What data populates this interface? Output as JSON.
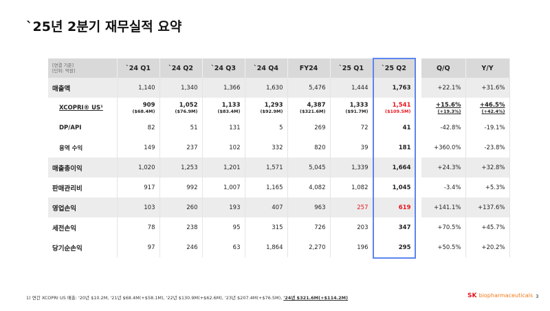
{
  "title": "`25년 2분기 재무실적 요약",
  "header": {
    "basis": "[연결 기준]",
    "unit": "[단위: 억원]",
    "cols": [
      "`24 Q1",
      "`24 Q2",
      "`24 Q3",
      "`24 Q4",
      "FY24",
      "`25 Q1",
      "`25 Q2"
    ],
    "qq": "Q/Q",
    "yy": "Y/Y"
  },
  "rows": [
    {
      "label": "매출액",
      "vals": [
        "1,140",
        "1,340",
        "1,366",
        "1,630",
        "5,476",
        "1,444",
        "1,763"
      ],
      "qq": "+22.1%",
      "yy": "+31.6%"
    },
    {
      "label": "XCOPRI® US¹",
      "vals": [
        "909",
        "1,052",
        "1,133",
        "1,293",
        "4,387",
        "1,333",
        "1,541"
      ],
      "usd": [
        "($68.4M)",
        "($76.9M)",
        "($83.4M)",
        "($92.9M)",
        "($321.6M)",
        "($91.7M)",
        "($109.5M)"
      ],
      "qq": "+15.6%",
      "qq_sub": "(+19.3%)",
      "yy": "+46.5%",
      "yy_sub": "(+42.4%)"
    },
    {
      "label": "DP/API",
      "vals": [
        "82",
        "51",
        "131",
        "5",
        "269",
        "72",
        "41"
      ],
      "qq": "-42.8%",
      "yy": "-19.1%"
    },
    {
      "label": "용역 수익",
      "vals": [
        "149",
        "237",
        "102",
        "332",
        "820",
        "39",
        "181"
      ],
      "qq": "+360.0%",
      "yy": "-23.8%"
    },
    {
      "label": "매출총이익",
      "vals": [
        "1,020",
        "1,253",
        "1,201",
        "1,571",
        "5,045",
        "1,339",
        "1,664"
      ],
      "qq": "+24.3%",
      "yy": "+32.8%"
    },
    {
      "label": "판매관리비",
      "vals": [
        "917",
        "992",
        "1,007",
        "1,165",
        "4,082",
        "1,082",
        "1,045"
      ],
      "qq": "-3.4%",
      "yy": "+5.3%"
    },
    {
      "label": "영업손익",
      "vals": [
        "103",
        "260",
        "193",
        "407",
        "963",
        "257",
        "619"
      ],
      "qq": "+141.1%",
      "yy": "+137.6%"
    },
    {
      "label": "세전손익",
      "vals": [
        "78",
        "238",
        "95",
        "315",
        "726",
        "203",
        "347"
      ],
      "qq": "+70.5%",
      "yy": "+45.7%"
    },
    {
      "label": "당기순손익",
      "vals": [
        "97",
        "246",
        "63",
        "1,864",
        "2,270",
        "196",
        "295"
      ],
      "qq": "+50.5%",
      "yy": "+20.2%"
    }
  ],
  "footnote": "1) 연간 XCOPRI US 매출: '20년 $10.2M, '21년 $68.4M(+$58.1M), '22년 $130.9M(+$62.6M), '23년 $207.4M(+$76.5M), ",
  "footnote_bold": "'24년 $321.6M(+$114.2M)",
  "logo_sk": "SK",
  "logo_text": "biopharmaceuticals",
  "page": "3",
  "colors": {
    "highlight": "#5b84ef",
    "red": "#e8141c"
  }
}
